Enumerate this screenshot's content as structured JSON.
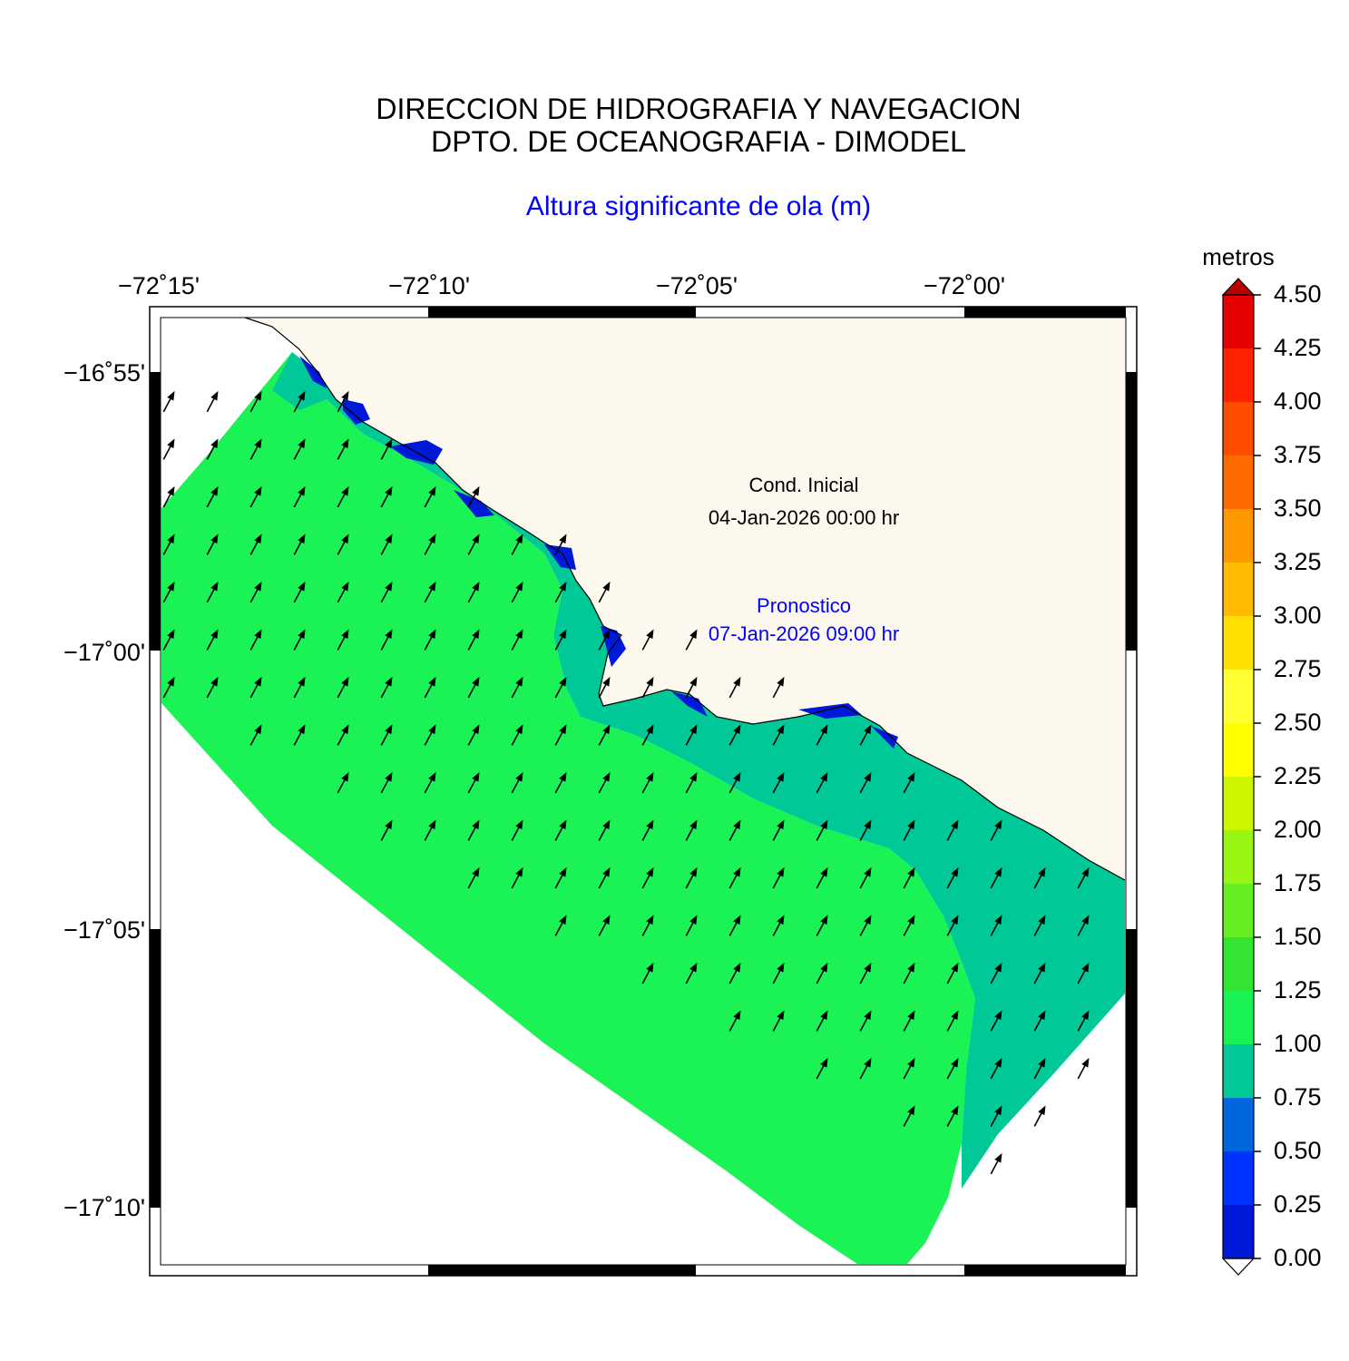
{
  "header": {
    "line1": "DIRECCION DE HIDROGRAFIA Y NAVEGACION",
    "line2": "DPTO. DE OCEANOGRAFIA - DIMODEL",
    "variable": "Altura significante de ola (m)"
  },
  "map": {
    "lon_ticks": [
      "−72˚15'",
      "−72˚10'",
      "−72˚05'",
      "−72˚00'"
    ],
    "lat_ticks": [
      "−16˚55'",
      "−17˚00'",
      "−17˚05'",
      "−17˚10'"
    ],
    "land_color": "#fdf8ee",
    "annotations": {
      "initial_label": "Cond. Inicial",
      "initial_time": "04-Jan-2026 00:00 hr",
      "forecast_label": "Pronostico",
      "forecast_time": "07-Jan-2026 09:00 hr"
    },
    "field_colors": {
      "band_1_00_1_25": "#1af256",
      "band_0_75_1_00": "#00c896",
      "band_0_00_0_25": "#0019d9"
    },
    "arrows": "wave direction vectors pointing north-northeast"
  },
  "colorbar": {
    "unit": "metros",
    "levels": [
      "0.00",
      "0.25",
      "0.50",
      "0.75",
      "1.00",
      "1.25",
      "1.50",
      "1.75",
      "2.00",
      "2.25",
      "2.50",
      "2.75",
      "3.00",
      "3.25",
      "3.50",
      "3.75",
      "4.00",
      "4.25",
      "4.50"
    ],
    "colors": [
      "#0019d9",
      "#0033ff",
      "#0066dd",
      "#00c896",
      "#1af256",
      "#33e533",
      "#66ee22",
      "#99f511",
      "#ccf500",
      "#ffff00",
      "#ffff33",
      "#ffe000",
      "#ffbb00",
      "#ff9900",
      "#ff6a00",
      "#ff4d00",
      "#ff2200",
      "#e60000",
      "#bb0000"
    ],
    "over_color": "#bb0000",
    "under_color": "#ffffff"
  }
}
